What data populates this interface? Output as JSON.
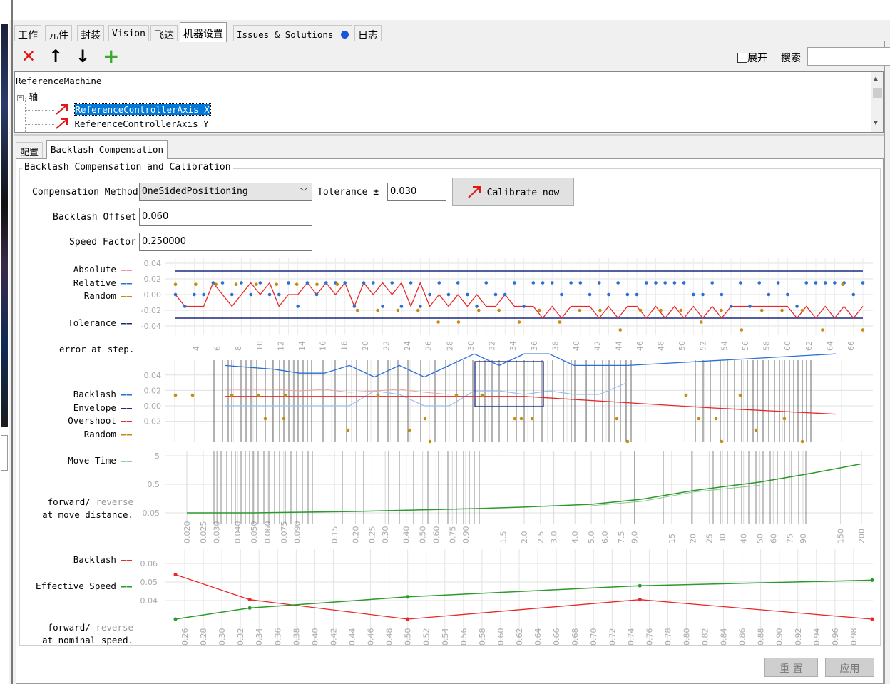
{
  "main_tabs": [
    {
      "label": "工作"
    },
    {
      "label": "元件"
    },
    {
      "label": "封装"
    },
    {
      "label": "Vision"
    },
    {
      "label": "飞达"
    },
    {
      "label": "机器设置"
    },
    {
      "label": "Issues & Solutions"
    },
    {
      "label": "日志"
    }
  ],
  "issues_dot_color": "#1a56db",
  "toolbar": {
    "delete_icon": "✕",
    "up_icon": "↑",
    "down_icon": "↓",
    "add_icon": "+",
    "expand_label": "展开",
    "search_label": "搜索",
    "search_value": ""
  },
  "tree": {
    "root": "ReferenceMachine",
    "group": "轴",
    "items": [
      {
        "label": "ReferenceControllerAxis X",
        "selected": true
      },
      {
        "label": "ReferenceControllerAxis Y",
        "selected": false
      }
    ]
  },
  "sub_tabs": [
    {
      "label": "配置"
    },
    {
      "label": "Backlash Compensation"
    }
  ],
  "form": {
    "group_title": "Backlash Compensation and Calibration",
    "method_label": "Compensation Method",
    "method_value": "OneSidedPositioning",
    "tolerance_label": "Tolerance ±",
    "tolerance_value": "0.030",
    "calibrate_label": "Calibrate now",
    "offset_label": "Backlash Offset",
    "offset_value": "0.060",
    "speed_label": "Speed Factor",
    "speed_value": "0.250000"
  },
  "legends": {
    "c1": [
      {
        "text": "Absolute",
        "color": "#e03030"
      },
      {
        "text": "Relative",
        "color": "#2a6fd6"
      },
      {
        "text": "Random",
        "color": "#c98a10"
      },
      {
        "text": "Tolerance",
        "color": "#1a2a80"
      },
      {
        "text": "error at step.",
        "color": ""
      }
    ],
    "c2": [
      {
        "text": "Backlash",
        "color": "#2a6fd6"
      },
      {
        "text": "Envelope",
        "color": "#1a2a80"
      },
      {
        "text": "Overshoot",
        "color": "#e03030"
      },
      {
        "text": "Random",
        "color": "#c98a10"
      }
    ],
    "c3": [
      {
        "text": "Move Time",
        "color": "#2a9a2a"
      },
      {
        "text": "forward/",
        "faint": "reverse"
      },
      {
        "text": "at move distance.",
        "faint": ""
      }
    ],
    "c4": [
      {
        "text": "Backlash",
        "color": "#e03030"
      },
      {
        "text": "Effective Speed",
        "color": "#2a9a2a"
      },
      {
        "text": "forward/",
        "faint": "reverse"
      },
      {
        "text": "at nominal speed.",
        "faint": ""
      }
    ]
  },
  "buttons": {
    "reset": "重 置",
    "apply": "应用"
  },
  "chart_data": [
    {
      "type": "scatter",
      "title": "error at step",
      "yticks": [
        "0.04",
        "0.02",
        "0.00",
        "-0.02",
        "-0.04"
      ],
      "xticks": [
        "4",
        "6",
        "8",
        "10",
        "12",
        "14",
        "16",
        "18",
        "20",
        "22",
        "24",
        "26",
        "28",
        "30",
        "32",
        "34",
        "36",
        "38",
        "40",
        "42",
        "44",
        "46",
        "48",
        "50",
        "52",
        "54",
        "56",
        "58",
        "60",
        "62",
        "64",
        "66"
      ],
      "tolerance": [
        -0.03,
        0.03
      ],
      "absolute": [
        0.0,
        -0.015,
        -0.015,
        -0.015,
        0.015,
        0.0,
        -0.015,
        0.0,
        0.015,
        0.0,
        0.015,
        -0.015,
        0.0,
        0.0,
        0.015,
        0.0,
        0.015,
        0.0,
        0.015,
        -0.015,
        0.015,
        0.0,
        0.015,
        0.0,
        0.015,
        -0.015,
        0.015,
        -0.015,
        0.0,
        -0.015,
        0.0,
        -0.015,
        0.0,
        -0.015,
        -0.015,
        0.0,
        -0.015,
        -0.015,
        -0.015,
        -0.03,
        -0.015,
        -0.03,
        -0.015,
        -0.015,
        -0.015,
        -0.03,
        -0.015,
        -0.03,
        -0.015,
        -0.015,
        -0.03,
        -0.015,
        -0.03,
        -0.015,
        -0.03,
        -0.015,
        -0.03,
        -0.015,
        -0.03,
        -0.015,
        -0.015,
        -0.015,
        -0.015,
        -0.015,
        -0.015,
        -0.015,
        -0.03,
        -0.015,
        -0.03,
        -0.015,
        -0.03,
        -0.015,
        -0.03,
        -0.015
      ],
      "relative": [
        0.0,
        -0.015,
        0.0,
        0.0,
        0.015,
        0.015,
        0.0,
        0.015,
        0.0,
        0.015,
        0.0,
        0.0,
        0.015,
        -0.015,
        0.015,
        0.0,
        0.015,
        0.015,
        0.015,
        -0.015,
        0.015,
        0.015,
        -0.015,
        0.015,
        -0.015,
        0.015,
        -0.015,
        0.0,
        0.015,
        0.0,
        0.015,
        0.0,
        -0.015,
        0.015,
        0.0,
        0.0,
        0.015,
        -0.015,
        0.015,
        0.015,
        0.015,
        0.0,
        0.015,
        0.015,
        0.0,
        0.015,
        0.0,
        0.015,
        0.0,
        0.0,
        0.015,
        0.015,
        0.015,
        0.015,
        0.015,
        0.0,
        0.0,
        0.015,
        0.0,
        -0.015,
        0.015,
        -0.015,
        0.015,
        0.0,
        0.015,
        0.0,
        -0.015,
        0.015,
        0.015,
        0.015,
        0.015,
        0.015,
        0.0,
        0.015
      ],
      "random": [
        0.013,
        0.013,
        0.013,
        0.013,
        0.013,
        0.013,
        0.013,
        0.013,
        0.013,
        -0.02,
        -0.02,
        -0.02,
        -0.02,
        -0.035,
        -0.035,
        -0.02,
        -0.02,
        -0.035,
        -0.02,
        -0.035,
        -0.02,
        -0.02,
        -0.045,
        -0.02,
        -0.02,
        -0.02,
        -0.035,
        -0.02,
        -0.045,
        -0.02,
        -0.02,
        -0.02,
        -0.045,
        0.013,
        -0.045
      ]
    },
    {
      "type": "line",
      "title": "backlash / envelope / overshoot",
      "yticks": [
        "0.04",
        "0.02",
        "0.00",
        "-0.02"
      ],
      "backlash": [
        0.045,
        0.04,
        0.035,
        0.035,
        0.045,
        0.03,
        0.045,
        0.03,
        0.045,
        0.06,
        0.045,
        0.06,
        0.06,
        0.045,
        0.045,
        0.045,
        0.06
      ],
      "overshoot": [
        0.015,
        0.015,
        0.015,
        0.015,
        0.015,
        0.015,
        0.015,
        0.015,
        0.015,
        0.015,
        0.015,
        0.015,
        0.0,
        -0.008
      ],
      "random": [
        0.015,
        0.015,
        0.015,
        0.015,
        -0.015,
        -0.015,
        0.015,
        -0.03,
        0.015,
        -0.03,
        -0.015,
        -0.045,
        0.015,
        -0.015,
        -0.015,
        -0.045,
        0.015,
        -0.015,
        -0.015,
        -0.045,
        -0.03,
        -0.045
      ]
    },
    {
      "type": "line",
      "title": "move time at move distance",
      "yticks": [
        "5",
        "0.5",
        "0.05"
      ],
      "xticks": [
        "0.020",
        "0.025",
        "0.030",
        "0.040",
        "0.050",
        "0.060",
        "0.075",
        "0.090",
        "0.15",
        "0.20",
        "0.25",
        "0.30",
        "0.40",
        "0.50",
        "0.60",
        "0.75",
        "0.90",
        "1.5",
        "2.0",
        "2.5",
        "3.0",
        "4.0",
        "5.0",
        "6.0",
        "7.5",
        "9.0",
        "15",
        "20",
        "25",
        "30",
        "40",
        "50",
        "60",
        "75",
        "90",
        "150",
        "200"
      ],
      "x": [
        0.02,
        0.05,
        0.1,
        0.2,
        0.5,
        1,
        2,
        5,
        10,
        20,
        50,
        100,
        200
      ],
      "forward": [
        0.05,
        0.05,
        0.053,
        0.056,
        0.064,
        0.07,
        0.08,
        0.1,
        0.15,
        0.3,
        0.6,
        1.2,
        2.6
      ]
    },
    {
      "type": "line",
      "title": "backlash and effective speed at nominal speed",
      "yticks": [
        "0.06",
        "0.05",
        "0.04"
      ],
      "xticks": [
        "0.26",
        "0.28",
        "0.30",
        "0.32",
        "0.34",
        "0.36",
        "0.38",
        "0.40",
        "0.42",
        "0.44",
        "0.46",
        "0.48",
        "0.50",
        "0.52",
        "0.54",
        "0.56",
        "0.58",
        "0.60",
        "0.62",
        "0.64",
        "0.66",
        "0.68",
        "0.70",
        "0.72",
        "0.74",
        "0.76",
        "0.78",
        "0.80",
        "0.82",
        "0.84",
        "0.86",
        "0.88",
        "0.90",
        "0.92",
        "0.94",
        "0.96",
        "0.98"
      ],
      "x": [
        0.25,
        0.33,
        0.5,
        0.75,
        1.0
      ],
      "backlash": [
        0.068,
        0.041,
        0.02,
        0.041,
        0.02
      ],
      "effective_speed": [
        0.02,
        0.032,
        0.044,
        0.056,
        0.062
      ]
    }
  ]
}
